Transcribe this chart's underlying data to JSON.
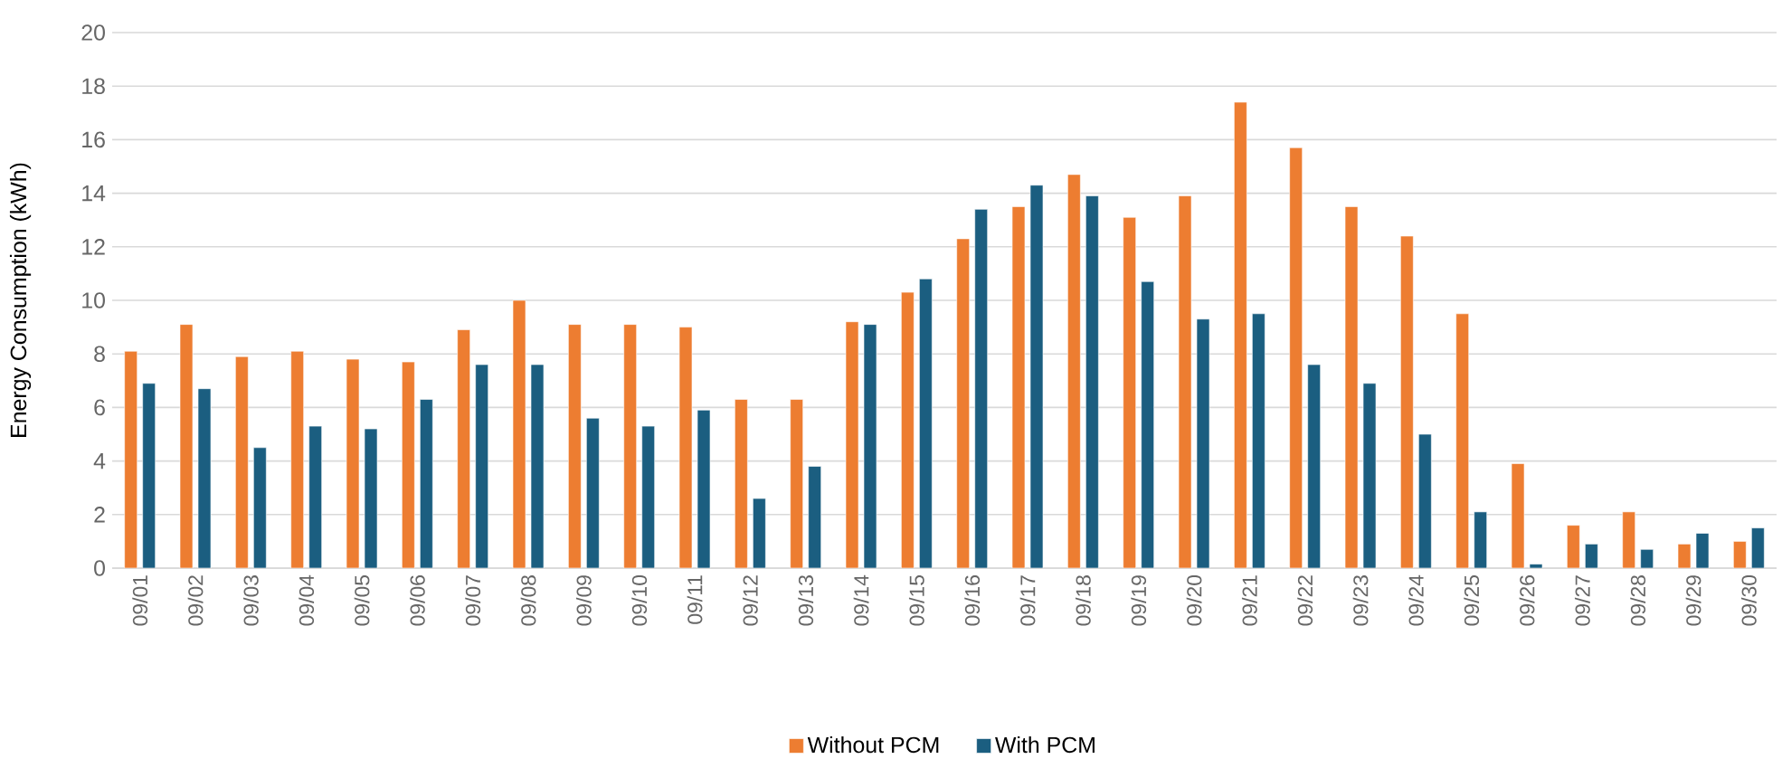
{
  "chart_data": {
    "type": "bar",
    "ylabel": "Energy Consumption (kWh)",
    "categories": [
      "09/01",
      "09/02",
      "09/03",
      "09/04",
      "09/05",
      "09/06",
      "09/07",
      "09/08",
      "09/09",
      "09/10",
      "09/11",
      "09/12",
      "09/13",
      "09/14",
      "09/15",
      "09/16",
      "09/17",
      "09/18",
      "09/19",
      "09/20",
      "09/21",
      "09/22",
      "09/23",
      "09/24",
      "09/25",
      "09/26",
      "09/27",
      "09/28",
      "09/29",
      "09/30"
    ],
    "series": [
      {
        "name": "Without PCM",
        "color": "#ed7d31",
        "values": [
          8.1,
          9.1,
          7.9,
          8.1,
          7.8,
          7.7,
          8.9,
          10.0,
          9.1,
          9.1,
          9.0,
          6.3,
          6.3,
          9.2,
          10.3,
          12.3,
          13.5,
          14.7,
          13.1,
          13.9,
          17.4,
          15.7,
          13.5,
          12.4,
          9.5,
          3.9,
          1.6,
          2.1,
          0.9,
          1.0
        ]
      },
      {
        "name": "With PCM",
        "color": "#1b5e80",
        "values": [
          6.9,
          6.7,
          4.5,
          5.3,
          5.2,
          6.3,
          7.6,
          7.6,
          5.6,
          5.3,
          5.9,
          2.6,
          3.8,
          9.1,
          10.8,
          13.4,
          14.3,
          13.9,
          10.7,
          9.3,
          9.5,
          7.6,
          6.9,
          5.0,
          2.1,
          0.15,
          0.9,
          0.7,
          1.3,
          1.5
        ]
      }
    ],
    "ylim": [
      0,
      20
    ],
    "yticks": [
      0,
      2,
      4,
      6,
      8,
      10,
      12,
      14,
      16,
      18,
      20
    ],
    "grid": "y",
    "legend": "bottom"
  }
}
